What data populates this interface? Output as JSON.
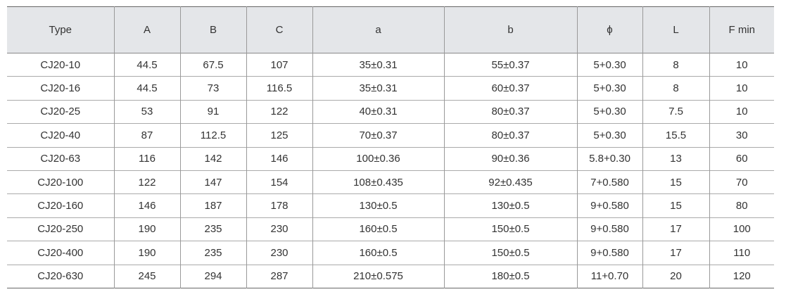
{
  "table": {
    "header": [
      "Type",
      "A",
      "B",
      "C",
      "a",
      "b",
      "ϕ",
      "L",
      "F min"
    ],
    "rows": [
      [
        "CJ20-10",
        "44.5",
        "67.5",
        "107",
        "35±0.31",
        "55±0.37",
        {
          "base": "5",
          "upper": "+0.3",
          "lower": "0"
        },
        "8",
        "10"
      ],
      [
        "CJ20-16",
        "44.5",
        "73",
        "116.5",
        "35±0.31",
        "60±0.37",
        {
          "base": "5",
          "upper": "+0.3",
          "lower": "0"
        },
        "8",
        "10"
      ],
      [
        "CJ20-25",
        "53",
        "91",
        "122",
        "40±0.31",
        "80±0.37",
        {
          "base": "5",
          "upper": "+0.3",
          "lower": "0"
        },
        "7.5",
        "10"
      ],
      [
        "CJ20-40",
        "87",
        "112.5",
        "125",
        "70±0.37",
        "80±0.37",
        {
          "base": "5",
          "upper": "+0.3",
          "lower": "0"
        },
        "15.5",
        "30"
      ],
      [
        "CJ20-63",
        "116",
        "142",
        "146",
        "100±0.36",
        "90±0.36",
        {
          "base": "5.8",
          "upper": "+0.3",
          "lower": "0"
        },
        "13",
        "60"
      ],
      [
        "CJ20-100",
        "122",
        "147",
        "154",
        "108±0.435",
        "92±0.435",
        {
          "base": "7",
          "upper": "+0.58",
          "lower": "0"
        },
        "15",
        "70"
      ],
      [
        "CJ20-160",
        "146",
        "187",
        "178",
        "130±0.5",
        "130±0.5",
        {
          "base": "9",
          "upper": "+0.58",
          "lower": "0"
        },
        "15",
        "80"
      ],
      [
        "CJ20-250",
        "190",
        "235",
        "230",
        "160±0.5",
        "150±0.5",
        {
          "base": "9",
          "upper": "+0.58",
          "lower": "0"
        },
        "17",
        "100"
      ],
      [
        "CJ20-400",
        "190",
        "235",
        "230",
        "160±0.5",
        "150±0.5",
        {
          "base": "9",
          "upper": "+0.58",
          "lower": "0"
        },
        "17",
        "110"
      ],
      [
        "CJ20-630",
        "245",
        "294",
        "287",
        "210±0.575",
        "180±0.5",
        {
          "base": "11",
          "upper": "+0.7",
          "lower": "0"
        },
        "20",
        "120"
      ]
    ]
  }
}
